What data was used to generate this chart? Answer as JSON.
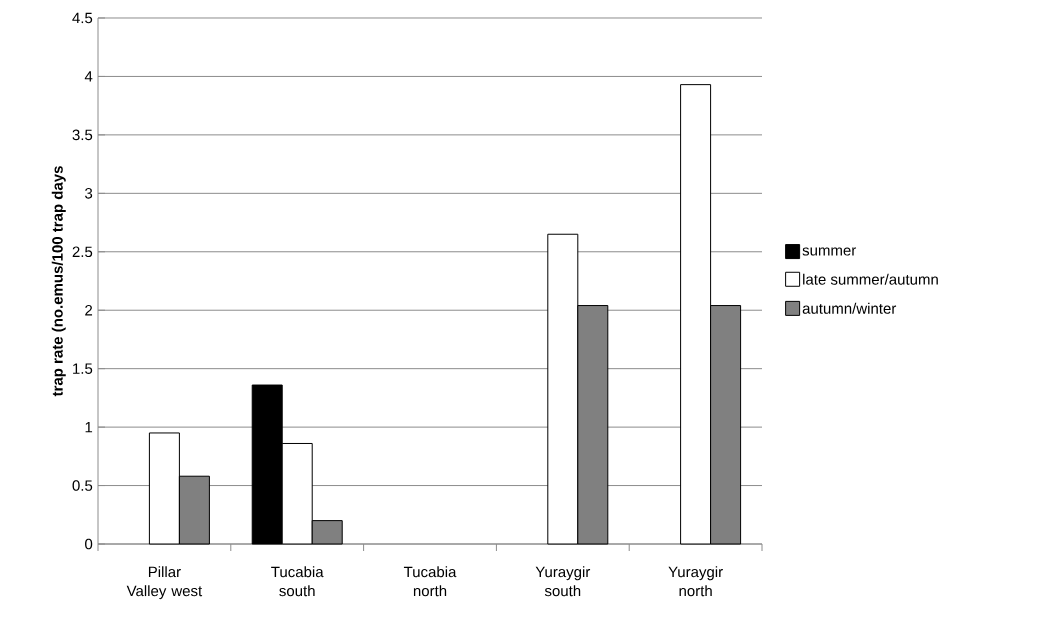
{
  "chart_data": {
    "type": "bar",
    "ylabel": "trap rate (no.emus/100 trap days",
    "categories": [
      "Pillar Valley west",
      "Tucabia south",
      "Tucabia north",
      "Yuraygir south",
      "Yuraygir north"
    ],
    "series": [
      {
        "name": "summer",
        "color": "#000000",
        "values": [
          null,
          1.36,
          null,
          null,
          null
        ]
      },
      {
        "name": "late summer/autumn",
        "color": "#ffffff",
        "values": [
          0.95,
          0.86,
          null,
          2.65,
          3.93
        ]
      },
      {
        "name": "autumn/winter",
        "color": "#808080",
        "values": [
          0.58,
          0.2,
          null,
          2.04,
          2.04
        ]
      }
    ],
    "ylim": [
      0,
      4.5
    ],
    "yticks": [
      0,
      0.5,
      1,
      1.5,
      2,
      2.5,
      3,
      3.5,
      4,
      4.5
    ],
    "grid": "y",
    "legend": "right"
  }
}
